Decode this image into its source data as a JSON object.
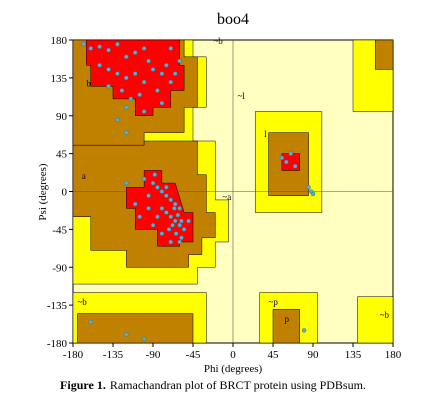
{
  "chart_data": {
    "type": "scatter",
    "title": "boo4",
    "x_label": "Phi (degrees)",
    "y_label": "Psi (degrees)",
    "xlim": [
      -180,
      180
    ],
    "ylim": [
      -180,
      180
    ],
    "xticks": [
      -180,
      -135,
      -90,
      -45,
      0,
      45,
      90,
      135,
      180
    ],
    "yticks": [
      -180,
      -135,
      -90,
      -45,
      0,
      45,
      90,
      135,
      180
    ],
    "zero_lines": true,
    "color": "#4fb2d6",
    "x": [
      -168,
      -160,
      -150,
      -140,
      -130,
      -120,
      -110,
      -100,
      -95,
      -150,
      -140,
      -130,
      -120,
      -110,
      -100,
      -90,
      -80,
      -75,
      -70,
      -65,
      -140,
      -125,
      -115,
      -105,
      -85,
      -80,
      -120,
      -100,
      -130,
      -120,
      -70,
      -60,
      -100,
      -90,
      -85,
      -80,
      -75,
      -95,
      -70,
      -65,
      -60,
      -80,
      -75,
      -70,
      -65,
      -60,
      -55,
      -68,
      -62,
      -58,
      -72,
      -64,
      -58,
      -66,
      -85,
      -90,
      -110,
      -120,
      -105,
      -60,
      -70,
      -50,
      -95,
      -80,
      -75,
      -88,
      55,
      60,
      65,
      70,
      85,
      88,
      90,
      -160,
      -120,
      -100,
      80
    ],
    "y": [
      175,
      170,
      172,
      168,
      175,
      160,
      165,
      170,
      155,
      150,
      145,
      140,
      135,
      140,
      130,
      145,
      140,
      150,
      130,
      140,
      125,
      120,
      110,
      115,
      120,
      105,
      100,
      95,
      85,
      70,
      170,
      155,
      15,
      10,
      5,
      0,
      -5,
      -5,
      -10,
      -15,
      -20,
      -20,
      -25,
      -30,
      -35,
      -40,
      -45,
      -40,
      -28,
      -35,
      -45,
      -50,
      -55,
      -20,
      -30,
      -40,
      -15,
      10,
      -30,
      -60,
      -60,
      -35,
      -20,
      -50,
      5,
      20,
      40,
      35,
      45,
      30,
      5,
      0,
      -3,
      -155,
      -170,
      -175,
      -165
    ],
    "annotations": [
      "b",
      "a",
      "~b",
      "~l",
      "l",
      "~a",
      "~b",
      "~p",
      "p",
      "~b"
    ],
    "caption_label": "Figure 1.",
    "caption_text": "Ramachandran plot of BRCT protein using PDBsum."
  }
}
